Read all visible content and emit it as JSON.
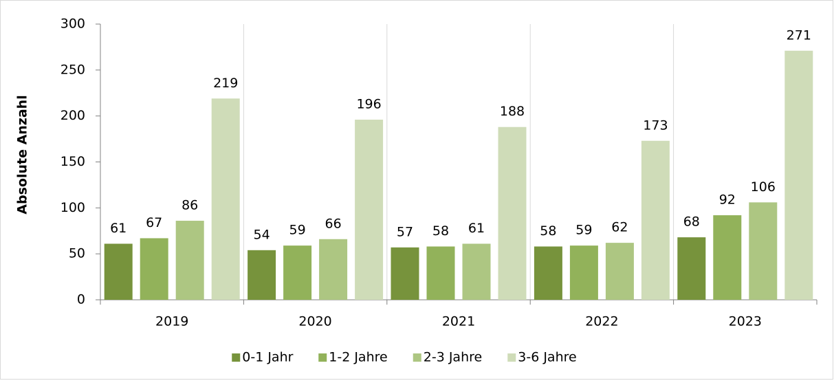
{
  "chart_data": {
    "type": "bar",
    "y_label": "Absolute Anzahl",
    "categories": [
      "2019",
      "2020",
      "2021",
      "2022",
      "2023"
    ],
    "series": [
      {
        "name": "0-1 Jahr",
        "color": "#77933c",
        "values": [
          61,
          54,
          57,
          58,
          68
        ]
      },
      {
        "name": "1-2 Jahre",
        "color": "#92b25a",
        "values": [
          67,
          59,
          58,
          59,
          92
        ]
      },
      {
        "name": "2-3 Jahre",
        "color": "#adc682",
        "values": [
          86,
          66,
          61,
          62,
          106
        ]
      },
      {
        "name": "3-6 Jahre",
        "color": "#cfdcb8",
        "values": [
          219,
          196,
          188,
          173,
          271
        ]
      }
    ],
    "ylim": [
      0,
      300
    ],
    "yticks": [
      0,
      50,
      100,
      150,
      200,
      250,
      300
    ],
    "legend": "bottom"
  }
}
